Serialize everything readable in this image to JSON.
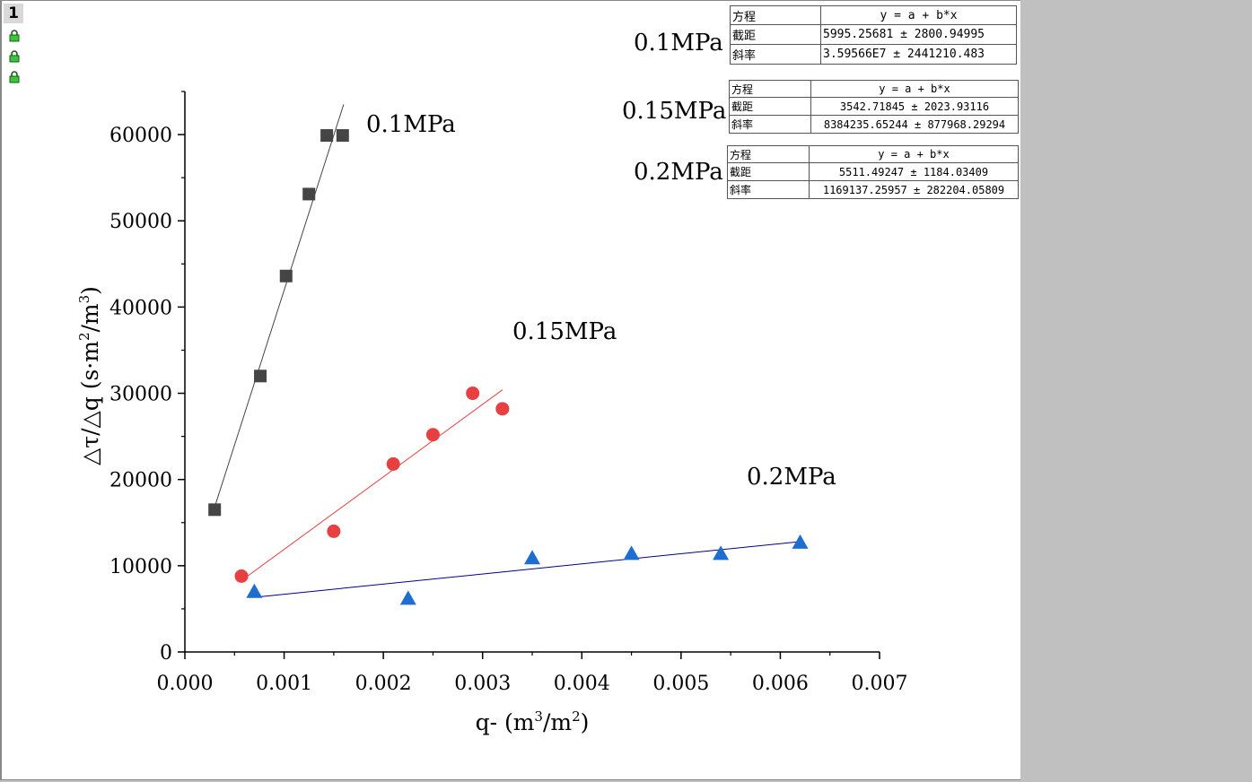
{
  "window": {
    "page_tab": "1"
  },
  "chart_data": {
    "type": "scatter",
    "xlabel_parts": {
      "prefix": "q- (m",
      "exp1": "3",
      "mid": "/m",
      "exp2": "2",
      "suffix": ")"
    },
    "ylabel_parts": {
      "prefix": "△τ/△q (s·m",
      "exp1": "2",
      "mid": "/m",
      "exp2": "3",
      "suffix": ")"
    },
    "xlim": [
      0,
      0.007
    ],
    "ylim": [
      0,
      65000
    ],
    "x_ticks": [
      "0.000",
      "0.001",
      "0.002",
      "0.003",
      "0.004",
      "0.005",
      "0.006",
      "0.007"
    ],
    "y_ticks": [
      "0",
      "10000",
      "20000",
      "30000",
      "40000",
      "50000",
      "60000"
    ],
    "series": [
      {
        "name": "0.1MPa",
        "marker": "square",
        "color": "#454545",
        "line_color": "#454545",
        "x": [
          0.0003,
          0.00076,
          0.00102,
          0.00125,
          0.00143,
          0.00159
        ],
        "y": [
          16500,
          32000,
          43600,
          53100,
          59900,
          59900
        ],
        "fit": {
          "x": [
            0.0003,
            0.0016
          ],
          "y": [
            16800,
            63500
          ]
        }
      },
      {
        "name": "0.15MPa",
        "marker": "circle",
        "color": "#e84040",
        "line_color": "#e84040",
        "x": [
          0.00057,
          0.0015,
          0.0021,
          0.0025,
          0.0029,
          0.0032
        ],
        "y": [
          8800,
          14000,
          21800,
          25200,
          30000,
          28200
        ],
        "fit": {
          "x": [
            0.00062,
            0.0032
          ],
          "y": [
            8700,
            30400
          ]
        }
      },
      {
        "name": "0.2MPa",
        "marker": "triangle",
        "color": "#1e6ed2",
        "line_color": "#00008b",
        "x": [
          0.0007,
          0.00225,
          0.0035,
          0.0045,
          0.0054,
          0.0062
        ],
        "y": [
          7000,
          6200,
          10900,
          11400,
          11400,
          12700
        ],
        "fit": {
          "x": [
            0.00075,
            0.0062
          ],
          "y": [
            6400,
            12800
          ]
        }
      }
    ],
    "fit_tables": [
      {
        "label": "0.1MPa",
        "equation_key": "方程",
        "equation": "y = a + b*x",
        "intercept_key": "截距",
        "intercept": "5995.25681 ± 2800.94995",
        "slope_key": "斜率",
        "slope": "3.59566E7 ± 2441210.483"
      },
      {
        "label": "0.15MPa",
        "equation_key": "方程",
        "equation": "y = a + b*x",
        "intercept_key": "截距",
        "intercept": "3542.71845 ± 2023.93116",
        "slope_key": "斜率",
        "slope": "8384235.65244 ± 877968.29294"
      },
      {
        "label": "0.2MPa",
        "equation_key": "方程",
        "equation": "y = a + b*x",
        "intercept_key": "截距",
        "intercept": "5511.49247 ± 1184.03409",
        "slope_key": "斜率",
        "slope": "1169137.25957 ± 282204.05809"
      }
    ],
    "annotations": [
      "0.1MPa",
      "0.15MPa",
      "0.2MPa"
    ],
    "grid": false,
    "legend": "none"
  }
}
